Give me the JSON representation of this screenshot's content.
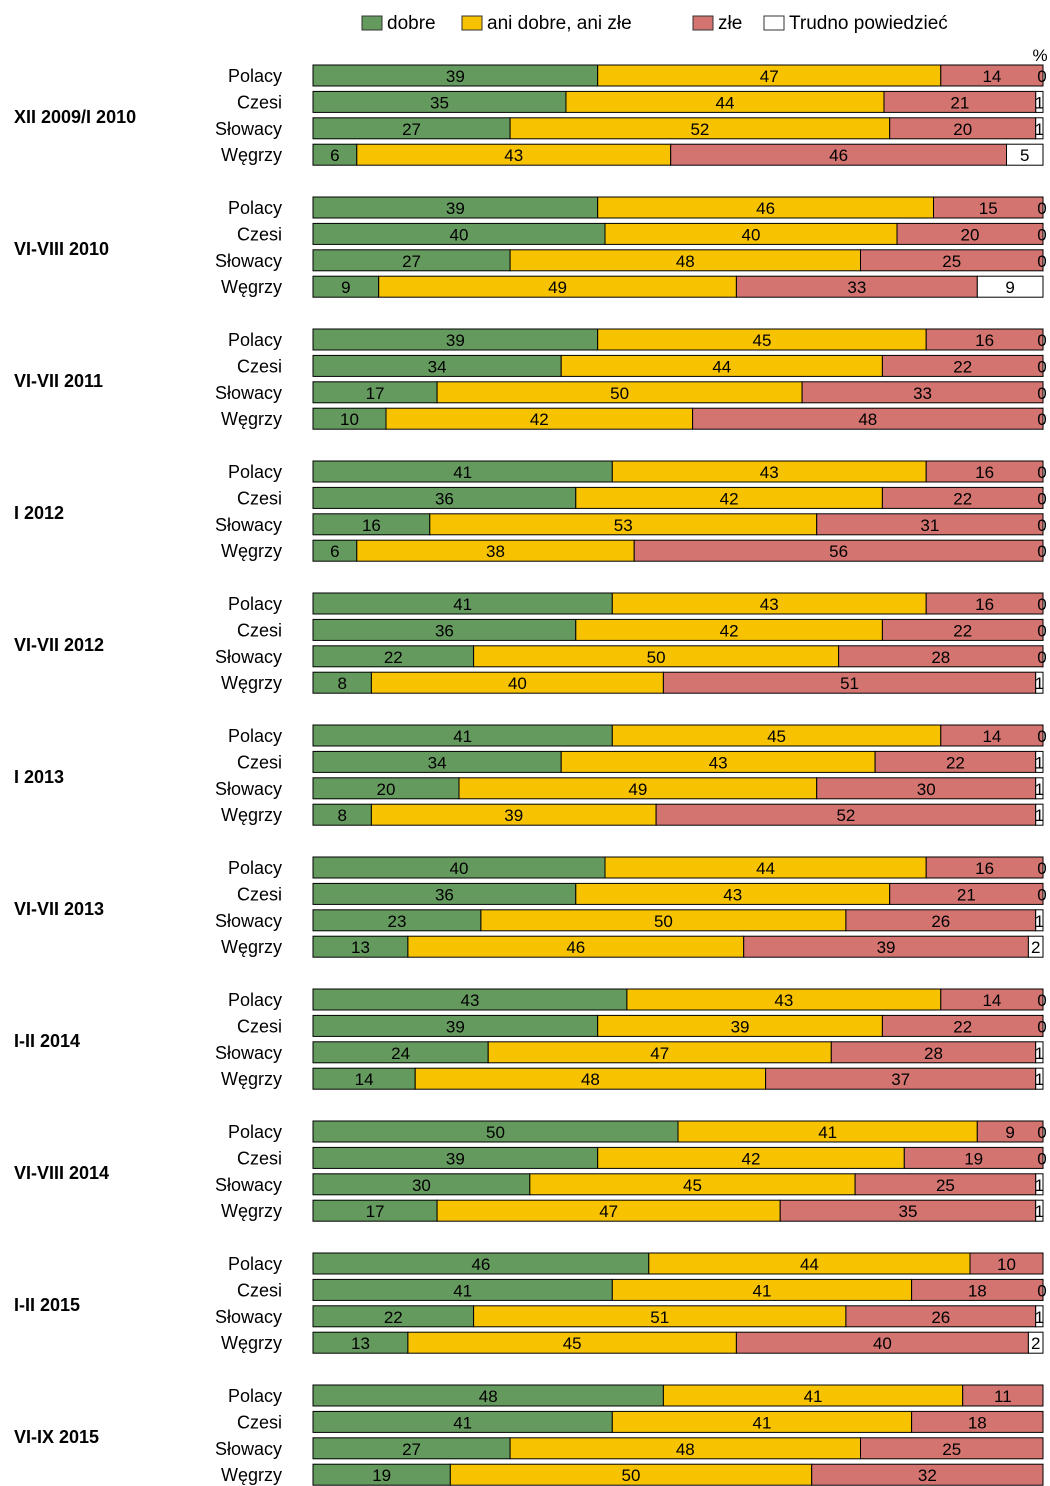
{
  "chart_data": {
    "type": "bar",
    "orientation": "horizontal",
    "stacked": true,
    "unit": "%",
    "legend_position": "top",
    "grid": false,
    "legend": [
      {
        "key": "dobre",
        "label": "dobre",
        "color": "#659a5f"
      },
      {
        "key": "ani",
        "label": "ani dobre, ani złe",
        "color": "#f7c200"
      },
      {
        "key": "zle",
        "label": "złe",
        "color": "#d47470"
      },
      {
        "key": "trudno",
        "label": "Trudno powiedzieć",
        "color": "#ffffff"
      }
    ],
    "groups": [
      {
        "period": "XII 2009/I 2010",
        "rows": [
          {
            "country": "Polacy",
            "values": [
              39,
              47,
              14,
              0
            ]
          },
          {
            "country": "Czesi",
            "values": [
              35,
              44,
              21,
              1
            ]
          },
          {
            "country": "Słowacy",
            "values": [
              27,
              52,
              20,
              1
            ]
          },
          {
            "country": "Węgrzy",
            "values": [
              6,
              43,
              46,
              5
            ]
          }
        ]
      },
      {
        "period": "VI-VIII 2010",
        "rows": [
          {
            "country": "Polacy",
            "values": [
              39,
              46,
              15,
              0
            ]
          },
          {
            "country": "Czesi",
            "values": [
              40,
              40,
              20,
              0
            ]
          },
          {
            "country": "Słowacy",
            "values": [
              27,
              48,
              25,
              0
            ]
          },
          {
            "country": "Węgrzy",
            "values": [
              9,
              49,
              33,
              9
            ]
          }
        ]
      },
      {
        "period": "VI-VII 2011",
        "rows": [
          {
            "country": "Polacy",
            "values": [
              39,
              45,
              16,
              0
            ]
          },
          {
            "country": "Czesi",
            "values": [
              34,
              44,
              22,
              0
            ]
          },
          {
            "country": "Słowacy",
            "values": [
              17,
              50,
              33,
              0
            ]
          },
          {
            "country": "Węgrzy",
            "values": [
              10,
              42,
              48,
              0
            ]
          }
        ]
      },
      {
        "period": "I 2012",
        "rows": [
          {
            "country": "Polacy",
            "values": [
              41,
              43,
              16,
              0
            ]
          },
          {
            "country": "Czesi",
            "values": [
              36,
              42,
              22,
              0
            ]
          },
          {
            "country": "Słowacy",
            "values": [
              16,
              53,
              31,
              0
            ]
          },
          {
            "country": "Węgrzy",
            "values": [
              6,
              38,
              56,
              0
            ]
          }
        ]
      },
      {
        "period": "VI-VII 2012",
        "rows": [
          {
            "country": "Polacy",
            "values": [
              41,
              43,
              16,
              0
            ]
          },
          {
            "country": "Czesi",
            "values": [
              36,
              42,
              22,
              0
            ]
          },
          {
            "country": "Słowacy",
            "values": [
              22,
              50,
              28,
              0
            ]
          },
          {
            "country": "Węgrzy",
            "values": [
              8,
              40,
              51,
              1
            ]
          }
        ]
      },
      {
        "period": "I 2013",
        "rows": [
          {
            "country": "Polacy",
            "values": [
              41,
              45,
              14,
              0
            ]
          },
          {
            "country": "Czesi",
            "values": [
              34,
              43,
              22,
              1
            ]
          },
          {
            "country": "Słowacy",
            "values": [
              20,
              49,
              30,
              1
            ]
          },
          {
            "country": "Węgrzy",
            "values": [
              8,
              39,
              52,
              1
            ]
          }
        ]
      },
      {
        "period": "VI-VII 2013",
        "rows": [
          {
            "country": "Polacy",
            "values": [
              40,
              44,
              16,
              0
            ]
          },
          {
            "country": "Czesi",
            "values": [
              36,
              43,
              21,
              0
            ]
          },
          {
            "country": "Słowacy",
            "values": [
              23,
              50,
              26,
              1
            ]
          },
          {
            "country": "Węgrzy",
            "values": [
              13,
              46,
              39,
              2
            ]
          }
        ]
      },
      {
        "period": "I-II 2014",
        "rows": [
          {
            "country": "Polacy",
            "values": [
              43,
              43,
              14,
              0
            ]
          },
          {
            "country": "Czesi",
            "values": [
              39,
              39,
              22,
              0
            ]
          },
          {
            "country": "Słowacy",
            "values": [
              24,
              47,
              28,
              1
            ]
          },
          {
            "country": "Węgrzy",
            "values": [
              14,
              48,
              37,
              1
            ]
          }
        ]
      },
      {
        "period": "VI-VIII 2014",
        "rows": [
          {
            "country": "Polacy",
            "values": [
              50,
              41,
              9,
              0
            ]
          },
          {
            "country": "Czesi",
            "values": [
              39,
              42,
              19,
              0
            ]
          },
          {
            "country": "Słowacy",
            "values": [
              30,
              45,
              25,
              1
            ]
          },
          {
            "country": "Węgrzy",
            "values": [
              17,
              47,
              35,
              1
            ]
          }
        ]
      },
      {
        "period": "I-II 2015",
        "rows": [
          {
            "country": "Polacy",
            "values": [
              46,
              44,
              10,
              null
            ]
          },
          {
            "country": "Czesi",
            "values": [
              41,
              41,
              18,
              0
            ]
          },
          {
            "country": "Słowacy",
            "values": [
              22,
              51,
              26,
              1
            ]
          },
          {
            "country": "Węgrzy",
            "values": [
              13,
              45,
              40,
              2
            ]
          }
        ]
      },
      {
        "period": "VI-IX 2015",
        "rows": [
          {
            "country": "Polacy",
            "values": [
              48,
              41,
              11,
              null
            ]
          },
          {
            "country": "Czesi",
            "values": [
              41,
              41,
              18,
              null
            ]
          },
          {
            "country": "Słowacy",
            "values": [
              27,
              48,
              25,
              null
            ]
          },
          {
            "country": "Węgrzy",
            "values": [
              19,
              50,
              32,
              null
            ]
          }
        ]
      }
    ]
  }
}
